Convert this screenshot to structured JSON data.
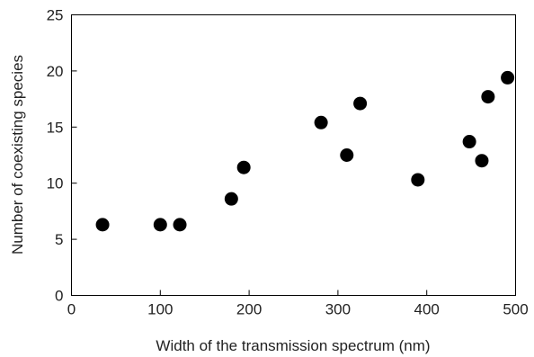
{
  "chart_data": {
    "type": "scatter",
    "title": "",
    "xlabel": "Width of the transmission spectrum (nm)",
    "ylabel": "Number of coexisting species",
    "xlim": [
      0,
      500
    ],
    "ylim": [
      0,
      25
    ],
    "xticks": [
      0,
      100,
      200,
      300,
      400,
      500
    ],
    "yticks": [
      0,
      5,
      10,
      15,
      20,
      25
    ],
    "grid": false,
    "legend": "none",
    "marker_color": "#000000",
    "points": [
      {
        "x": 35,
        "y": 6.3
      },
      {
        "x": 100,
        "y": 6.3
      },
      {
        "x": 122,
        "y": 6.3
      },
      {
        "x": 180,
        "y": 8.6
      },
      {
        "x": 194,
        "y": 11.4
      },
      {
        "x": 281,
        "y": 15.4
      },
      {
        "x": 310,
        "y": 12.5
      },
      {
        "x": 325,
        "y": 17.1
      },
      {
        "x": 390,
        "y": 10.3
      },
      {
        "x": 448,
        "y": 13.7
      },
      {
        "x": 462,
        "y": 12.0
      },
      {
        "x": 469,
        "y": 17.7
      },
      {
        "x": 491,
        "y": 19.4
      }
    ]
  }
}
